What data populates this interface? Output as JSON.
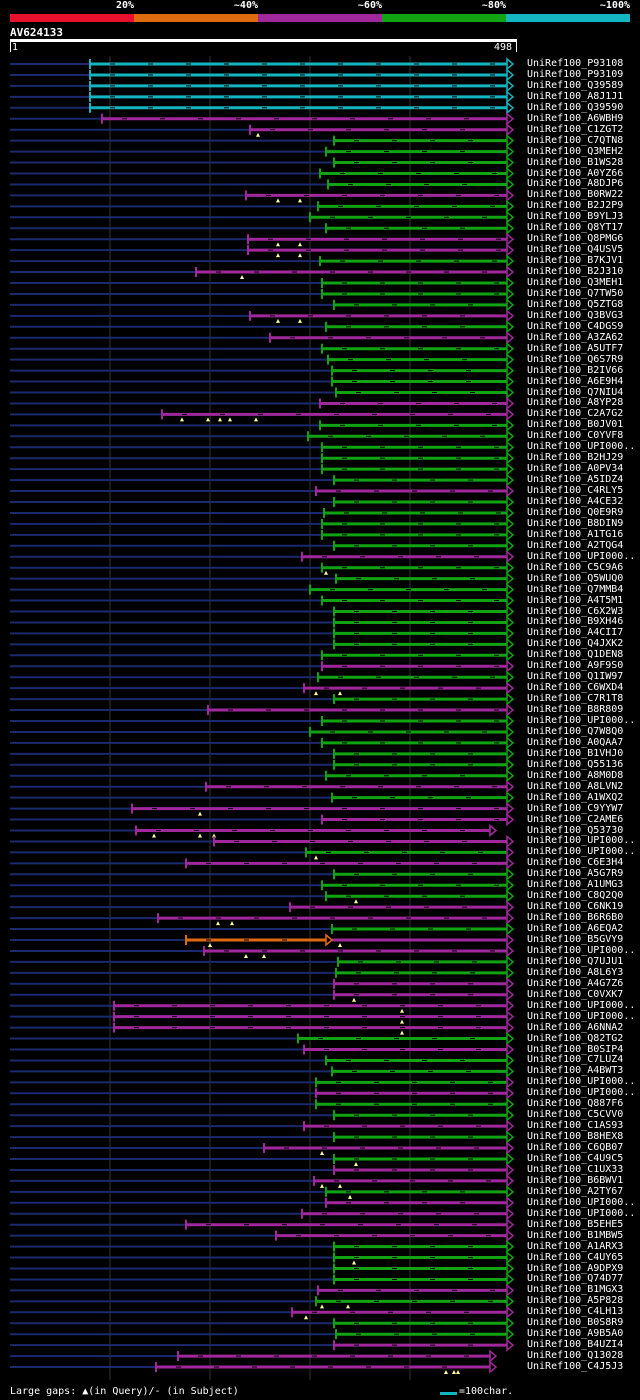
{
  "legend": {
    "colors": [
      "#e8102c",
      "#e06a10",
      "#a0289c",
      "#11a412",
      "#13b6c0"
    ],
    "labels": [
      "20%",
      "~40%",
      "~60%",
      "~80%",
      "~100%"
    ]
  },
  "query": {
    "id": "AV624133",
    "start": "1",
    "end": "498",
    "length": 498
  },
  "grid_positions": [
    100,
    200,
    300,
    400
  ],
  "colors": {
    "lowline": "#1b2a6e",
    "purple": "#a0289c",
    "green": "#11a412",
    "cyan": "#13b6c0",
    "orange": "#e06a10",
    "triangle": "#ffffa0",
    "grid": "#333333"
  },
  "hits": [
    {
      "label": "UniRef100_P93108",
      "s": 80,
      "c": "cyan",
      "arrow": "cyan",
      "gaps": []
    },
    {
      "label": "UniRef100_P93109",
      "s": 80,
      "c": "cyan",
      "arrow": "cyan",
      "gaps": []
    },
    {
      "label": "UniRef100_Q39589",
      "s": 80,
      "c": "cyan",
      "arrow": "cyan",
      "gaps": []
    },
    {
      "label": "UniRef100_A8J1J1",
      "s": 80,
      "c": "cyan",
      "arrow": "cyan",
      "gaps": []
    },
    {
      "label": "UniRef100_Q39590",
      "s": 80,
      "c": "cyan",
      "arrow": "cyan",
      "gaps": []
    },
    {
      "label": "UniRef100_A6WBH9",
      "s": 92,
      "c": "purple",
      "arrow": "purple",
      "gaps": []
    },
    {
      "label": "UniRef100_C1ZGT2",
      "s": 240,
      "c": "purple",
      "arrow": "purple",
      "gaps": [
        248
      ]
    },
    {
      "label": "UniRef100_C7QTN8",
      "s": 324,
      "c": "green",
      "arrow": "green",
      "gaps": []
    },
    {
      "label": "UniRef100_Q3MEH2",
      "s": 316,
      "c": "green",
      "arrow": "green",
      "gaps": []
    },
    {
      "label": "UniRef100_B1WS28",
      "s": 324,
      "c": "green",
      "arrow": "green",
      "gaps": []
    },
    {
      "label": "UniRef100_A0YZ66",
      "s": 310,
      "c": "green",
      "arrow": "green",
      "gaps": []
    },
    {
      "label": "UniRef100_A8DJP6",
      "s": 318,
      "c": "green",
      "arrow": "green",
      "gaps": []
    },
    {
      "label": "UniRef100_B0RW22",
      "s": 236,
      "c": "purple",
      "arrow": "purple",
      "gaps": [
        268,
        290
      ]
    },
    {
      "label": "UniRef100_B2J2P9",
      "s": 308,
      "c": "green",
      "arrow": "green",
      "gaps": []
    },
    {
      "label": "UniRef100_B9YLJ3",
      "s": 300,
      "c": "green",
      "arrow": "green",
      "gaps": []
    },
    {
      "label": "UniRef100_Q8YT17",
      "s": 316,
      "c": "green",
      "arrow": "green",
      "gaps": []
    },
    {
      "label": "UniRef100_Q8PMG6",
      "s": 238,
      "c": "purple",
      "arrow": "purple",
      "gaps": [
        268,
        290
      ]
    },
    {
      "label": "UniRef100_Q4USV5",
      "s": 238,
      "c": "purple",
      "arrow": "purple",
      "gaps": [
        268,
        290
      ]
    },
    {
      "label": "UniRef100_B7KJV1",
      "s": 310,
      "c": "green",
      "arrow": "green",
      "gaps": []
    },
    {
      "label": "UniRef100_B2J310",
      "s": 186,
      "c": "purple",
      "arrow": "purple",
      "gaps": [
        232
      ]
    },
    {
      "label": "UniRef100_Q3MEH1",
      "s": 312,
      "c": "green",
      "arrow": "green",
      "gaps": []
    },
    {
      "label": "UniRef100_Q7TW50",
      "s": 312,
      "c": "green",
      "arrow": "green",
      "gaps": []
    },
    {
      "label": "UniRef100_Q5ZTG8",
      "s": 324,
      "c": "green",
      "arrow": "green",
      "gaps": []
    },
    {
      "label": "UniRef100_Q3BVG3",
      "s": 240,
      "c": "purple",
      "arrow": "purple",
      "gaps": [
        268,
        290
      ]
    },
    {
      "label": "UniRef100_C4DGS9",
      "s": 316,
      "c": "green",
      "arrow": "green",
      "gaps": []
    },
    {
      "label": "UniRef100_A3ZA62",
      "s": 260,
      "c": "purple",
      "arrow": "purple",
      "gaps": []
    },
    {
      "label": "UniRef100_A5UTF7",
      "s": 312,
      "c": "green",
      "arrow": "green",
      "gaps": []
    },
    {
      "label": "UniRef100_Q6S7R9",
      "s": 318,
      "c": "green",
      "arrow": "green",
      "gaps": []
    },
    {
      "label": "UniRef100_B2IV66",
      "s": 322,
      "c": "green",
      "arrow": "green",
      "gaps": []
    },
    {
      "label": "UniRef100_A6E9H4",
      "s": 322,
      "c": "green",
      "arrow": "green",
      "gaps": []
    },
    {
      "label": "UniRef100_Q7NIU4",
      "s": 326,
      "c": "green",
      "arrow": "green",
      "gaps": []
    },
    {
      "label": "UniRef100_A8YP28",
      "s": 310,
      "c": "purple",
      "arrow": "purple",
      "gaps": []
    },
    {
      "label": "UniRef100_C2A7G2",
      "s": 152,
      "c": "purple",
      "arrow": "purple",
      "gaps": [
        172,
        198,
        210,
        220,
        246
      ]
    },
    {
      "label": "UniRef100_B0JV01",
      "s": 310,
      "c": "green",
      "arrow": "green",
      "gaps": []
    },
    {
      "label": "UniRef100_C0YVF8",
      "s": 298,
      "c": "green",
      "arrow": "green",
      "gaps": []
    },
    {
      "label": "UniRef100_UPI000..",
      "s": 312,
      "c": "green",
      "arrow": "green",
      "gaps": []
    },
    {
      "label": "UniRef100_B2HJ29",
      "s": 312,
      "c": "green",
      "arrow": "green",
      "gaps": []
    },
    {
      "label": "UniRef100_A0PV34",
      "s": 312,
      "c": "green",
      "arrow": "green",
      "gaps": []
    },
    {
      "label": "UniRef100_A5IDZ4",
      "s": 324,
      "c": "green",
      "arrow": "green",
      "gaps": []
    },
    {
      "label": "UniRef100_C4RLY5",
      "s": 306,
      "c": "purple",
      "arrow": "purple",
      "gaps": []
    },
    {
      "label": "UniRef100_A4CE32",
      "s": 324,
      "c": "green",
      "arrow": "green",
      "gaps": []
    },
    {
      "label": "UniRef100_Q0E9R9",
      "s": 314,
      "c": "green",
      "arrow": "green",
      "gaps": []
    },
    {
      "label": "UniRef100_B8DIN9",
      "s": 312,
      "c": "green",
      "arrow": "green",
      "gaps": []
    },
    {
      "label": "UniRef100_A1TG16",
      "s": 312,
      "c": "green",
      "arrow": "green",
      "gaps": []
    },
    {
      "label": "UniRef100_A2TQG4",
      "s": 324,
      "c": "green",
      "arrow": "green",
      "gaps": []
    },
    {
      "label": "UniRef100_UPI000..",
      "s": 292,
      "c": "purple",
      "arrow": "purple",
      "gaps": []
    },
    {
      "label": "UniRef100_C5C9A6",
      "s": 312,
      "c": "green",
      "arrow": "green",
      "gaps": [
        316
      ]
    },
    {
      "label": "UniRef100_Q5WUQ0",
      "s": 326,
      "c": "green",
      "arrow": "green",
      "gaps": []
    },
    {
      "label": "UniRef100_Q7MMB4",
      "s": 300,
      "c": "green",
      "arrow": "green",
      "gaps": []
    },
    {
      "label": "UniRef100_A4T5M1",
      "s": 312,
      "c": "green",
      "arrow": "green",
      "gaps": []
    },
    {
      "label": "UniRef100_C6X2W3",
      "s": 324,
      "c": "green",
      "arrow": "green",
      "gaps": []
    },
    {
      "label": "UniRef100_B9XH46",
      "s": 324,
      "c": "green",
      "arrow": "green",
      "gaps": []
    },
    {
      "label": "UniRef100_A4CII7",
      "s": 324,
      "c": "green",
      "arrow": "green",
      "gaps": []
    },
    {
      "label": "UniRef100_Q4JXK2",
      "s": 324,
      "c": "green",
      "arrow": "green",
      "gaps": []
    },
    {
      "label": "UniRef100_Q1DEN8",
      "s": 312,
      "c": "green",
      "arrow": "green",
      "gaps": []
    },
    {
      "label": "UniRef100_A9F9S0",
      "s": 312,
      "c": "purple",
      "arrow": "purple",
      "gaps": []
    },
    {
      "label": "UniRef100_Q1IW97",
      "s": 308,
      "c": "green",
      "arrow": "green",
      "gaps": []
    },
    {
      "label": "UniRef100_C6WXD4",
      "s": 294,
      "c": "purple",
      "arrow": "purple",
      "gaps": [
        306,
        330
      ]
    },
    {
      "label": "UniRef100_C7R1T8",
      "s": 324,
      "c": "green",
      "arrow": "green",
      "gaps": []
    },
    {
      "label": "UniRef100_B8R809",
      "s": 198,
      "c": "purple",
      "arrow": "purple",
      "gaps": []
    },
    {
      "label": "UniRef100_UPI000..",
      "s": 312,
      "c": "green",
      "arrow": "green",
      "gaps": []
    },
    {
      "label": "UniRef100_Q7W8Q0",
      "s": 300,
      "c": "green",
      "arrow": "green",
      "gaps": []
    },
    {
      "label": "UniRef100_A0QAA7",
      "s": 312,
      "c": "green",
      "arrow": "green",
      "gaps": []
    },
    {
      "label": "UniRef100_B1VHJ0",
      "s": 324,
      "c": "green",
      "arrow": "green",
      "gaps": []
    },
    {
      "label": "UniRef100_Q55136",
      "s": 324,
      "c": "green",
      "arrow": "green",
      "gaps": []
    },
    {
      "label": "UniRef100_A8M0D8",
      "s": 316,
      "c": "green",
      "arrow": "green",
      "gaps": []
    },
    {
      "label": "UniRef100_A8LVN2",
      "s": 196,
      "c": "purple",
      "arrow": "purple",
      "gaps": []
    },
    {
      "label": "UniRef100_A1WXQ2",
      "s": 322,
      "c": "green",
      "arrow": "green",
      "gaps": []
    },
    {
      "label": "UniRef100_C9YYW7",
      "s": 122,
      "c": "purple",
      "arrow": "purple",
      "gaps": [
        190
      ]
    },
    {
      "label": "UniRef100_C2AME6",
      "s": 312,
      "c": "purple",
      "arrow": "purple",
      "gaps": []
    },
    {
      "label": "UniRef100_Q53730",
      "s": 126,
      "c": "purple",
      "arrow": "purple",
      "e": 480,
      "gaps": [
        144,
        190,
        204
      ]
    },
    {
      "label": "UniRef100_UPI000..",
      "s": 204,
      "c": "purple",
      "arrow": "purple",
      "gaps": []
    },
    {
      "label": "UniRef100_UPI000..",
      "s": 296,
      "c": "green",
      "arrow": "purple",
      "gaps": [
        306
      ]
    },
    {
      "label": "UniRef100_C6E3H4",
      "s": 176,
      "c": "purple",
      "arrow": "purple",
      "gaps": []
    },
    {
      "label": "UniRef100_A5G7R9",
      "s": 324,
      "c": "green",
      "arrow": "green",
      "gaps": []
    },
    {
      "label": "UniRef100_A1UMG3",
      "s": 312,
      "c": "green",
      "arrow": "green",
      "gaps": []
    },
    {
      "label": "UniRef100_C8Q2Q0",
      "s": 316,
      "c": "green",
      "arrow": "green",
      "gaps": [
        346
      ]
    },
    {
      "label": "UniRef100_C6NK19",
      "s": 280,
      "c": "purple",
      "arrow": "purple",
      "gaps": []
    },
    {
      "label": "UniRef100_B6R6B0",
      "s": 148,
      "c": "purple",
      "arrow": "purple",
      "gaps": [
        208,
        222
      ]
    },
    {
      "label": "UniRef100_A6EQA2",
      "s": 322,
      "c": "green",
      "arrow": "green",
      "gaps": []
    },
    {
      "label": "UniRef100_B5GVY9",
      "s": 176,
      "c": "orange",
      "e": 316,
      "seg2": [
        322,
        "purple"
      ],
      "arrow": "purple",
      "gaps": [
        200,
        330
      ]
    },
    {
      "label": "UniRef100_UPI000..",
      "s": 194,
      "c": "purple",
      "arrow": "purple",
      "gaps": [
        236,
        254
      ]
    },
    {
      "label": "UniRef100_Q7UJU1",
      "s": 328,
      "c": "green",
      "arrow": "green",
      "gaps": []
    },
    {
      "label": "UniRef100_A8L6Y3",
      "s": 326,
      "c": "green",
      "arrow": "green",
      "gaps": []
    },
    {
      "label": "UniRef100_A4G7Z6",
      "s": 324,
      "c": "purple",
      "arrow": "purple",
      "gaps": []
    },
    {
      "label": "UniRef100_C0VXK7",
      "s": 324,
      "c": "purple",
      "arrow": "purple",
      "gaps": [
        344
      ]
    },
    {
      "label": "UniRef100_UPI000..",
      "s": 104,
      "c": "purple",
      "arrow": "purple",
      "gaps": [
        392
      ]
    },
    {
      "label": "UniRef100_UPI000..",
      "s": 104,
      "c": "purple",
      "arrow": "purple",
      "gaps": [
        392
      ]
    },
    {
      "label": "UniRef100_A6NNA2",
      "s": 104,
      "c": "purple",
      "arrow": "purple",
      "gaps": [
        392
      ]
    },
    {
      "label": "UniRef100_Q82TG2",
      "s": 288,
      "c": "green",
      "arrow": "green",
      "gaps": []
    },
    {
      "label": "UniRef100_B0SIP4",
      "s": 294,
      "c": "purple",
      "arrow": "purple",
      "gaps": []
    },
    {
      "label": "UniRef100_C7LUZ4",
      "s": 316,
      "c": "green",
      "arrow": "green",
      "gaps": []
    },
    {
      "label": "UniRef100_A4BWT3",
      "s": 322,
      "c": "green",
      "arrow": "green",
      "gaps": []
    },
    {
      "label": "UniRef100_UPI000..",
      "s": 306,
      "c": "green",
      "arrow": "purple",
      "gaps": []
    },
    {
      "label": "UniRef100_UPI000..",
      "s": 306,
      "c": "purple",
      "arrow": "purple",
      "gaps": []
    },
    {
      "label": "UniRef100_Q887F6",
      "s": 306,
      "c": "green",
      "arrow": "green",
      "gaps": []
    },
    {
      "label": "UniRef100_C5CVV0",
      "s": 324,
      "c": "green",
      "arrow": "green",
      "gaps": []
    },
    {
      "label": "UniRef100_C1AS93",
      "s": 294,
      "c": "purple",
      "arrow": "purple",
      "gaps": []
    },
    {
      "label": "UniRef100_B8HEX8",
      "s": 324,
      "c": "green",
      "arrow": "green",
      "gaps": []
    },
    {
      "label": "UniRef100_C6QB07",
      "s": 254,
      "c": "purple",
      "arrow": "purple",
      "gaps": [
        312
      ]
    },
    {
      "label": "UniRef100_C4U9C5",
      "s": 324,
      "c": "green",
      "arrow": "green",
      "gaps": [
        346
      ]
    },
    {
      "label": "UniRef100_C1UX33",
      "s": 324,
      "c": "purple",
      "arrow": "purple",
      "gaps": []
    },
    {
      "label": "UniRef100_B6BWV1",
      "s": 304,
      "c": "purple",
      "arrow": "purple",
      "gaps": [
        312,
        330
      ]
    },
    {
      "label": "UniRef100_A2TY67",
      "s": 316,
      "c": "green",
      "arrow": "green",
      "gaps": [
        340
      ]
    },
    {
      "label": "UniRef100_UPI000..",
      "s": 316,
      "c": "purple",
      "arrow": "purple",
      "gaps": []
    },
    {
      "label": "UniRef100_UPI000..",
      "s": 292,
      "c": "purple",
      "arrow": "purple",
      "gaps": []
    },
    {
      "label": "UniRef100_B5EHE5",
      "s": 176,
      "c": "purple",
      "arrow": "purple",
      "gaps": []
    },
    {
      "label": "UniRef100_B1MBW5",
      "s": 266,
      "c": "purple",
      "arrow": "purple",
      "gaps": []
    },
    {
      "label": "UniRef100_A1ARX3",
      "s": 324,
      "c": "green",
      "arrow": "green",
      "gaps": []
    },
    {
      "label": "UniRef100_C4UY65",
      "s": 324,
      "c": "green",
      "arrow": "green",
      "gaps": [
        344
      ]
    },
    {
      "label": "UniRef100_A9DPX9",
      "s": 324,
      "c": "green",
      "arrow": "green",
      "gaps": []
    },
    {
      "label": "UniRef100_Q74D77",
      "s": 324,
      "c": "green",
      "arrow": "green",
      "gaps": []
    },
    {
      "label": "UniRef100_B1MGX3",
      "s": 308,
      "c": "purple",
      "arrow": "purple",
      "gaps": []
    },
    {
      "label": "UniRef100_A5P828",
      "s": 306,
      "c": "green",
      "arrow": "green",
      "gaps": [
        312,
        338
      ]
    },
    {
      "label": "UniRef100_C4LH13",
      "s": 282,
      "c": "purple",
      "arrow": "purple",
      "gaps": [
        296
      ]
    },
    {
      "label": "UniRef100_B0S8R9",
      "s": 324,
      "c": "green",
      "arrow": "green",
      "gaps": []
    },
    {
      "label": "UniRef100_A9B5A0",
      "s": 326,
      "c": "green",
      "arrow": "green",
      "gaps": []
    },
    {
      "label": "UniRef100_B4UZI4",
      "s": 324,
      "c": "purple",
      "arrow": "purple",
      "gaps": []
    },
    {
      "label": "UniRef100_Q13028",
      "s": 168,
      "c": "purple",
      "arrow": "purple",
      "e": 480,
      "gaps": []
    },
    {
      "label": "UniRef100_C4J5J3",
      "s": 146,
      "c": "purple",
      "arrow": "purple",
      "e": 480,
      "gaps": [
        436,
        444,
        448
      ]
    }
  ],
  "footer": {
    "note": "Large gaps: ▲(in Query)/- (in Subject)",
    "scale": "=100char."
  }
}
